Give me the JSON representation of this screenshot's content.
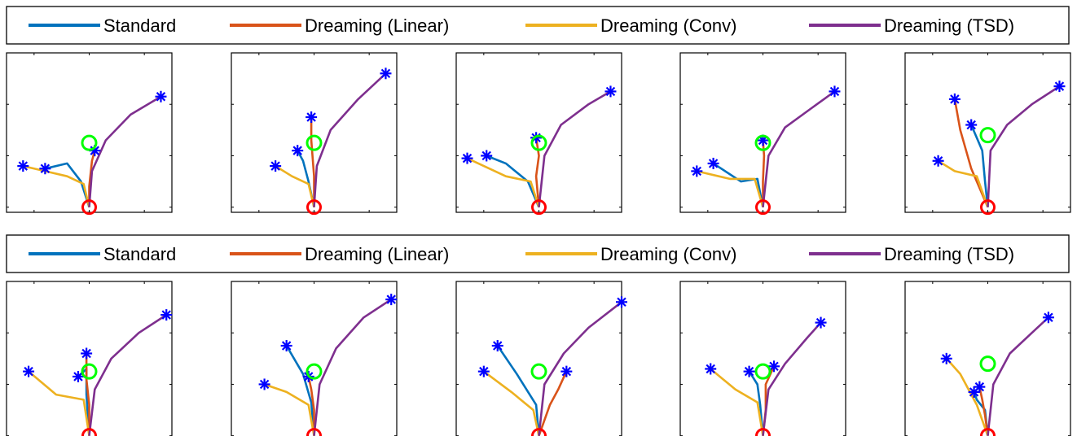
{
  "legend": [
    {
      "label": "Standard",
      "color": "#0072BD"
    },
    {
      "label": "Dreaming (Linear)",
      "color": "#D95319"
    },
    {
      "label": "Dreaming (Conv)",
      "color": "#EDB120"
    },
    {
      "label": "Dreaming (TSD)",
      "color": "#7E2F8E"
    }
  ],
  "markers": {
    "start_color": "#FF0000",
    "goal_color": "#00FF00",
    "endpoint_color": "#0000FF"
  },
  "chart_data": [
    {
      "type": "line",
      "group": "top",
      "panel": 1,
      "xlim": [
        -1.5,
        1.5
      ],
      "ylim": [
        -0.1,
        3
      ],
      "start": [
        0,
        0
      ],
      "goal": [
        0,
        1.25
      ],
      "series": [
        {
          "color": "#0072BD",
          "x": [
            0,
            -0.15,
            -0.4,
            -0.8
          ],
          "y": [
            0,
            0.5,
            0.85,
            0.75
          ]
        },
        {
          "color": "#D95319",
          "x": [
            0,
            0,
            0.05,
            0.1
          ],
          "y": [
            0,
            0.4,
            0.9,
            1.1
          ]
        },
        {
          "color": "#EDB120",
          "x": [
            0,
            -0.1,
            -0.4,
            -0.8,
            -1.2
          ],
          "y": [
            0,
            0.45,
            0.6,
            0.7,
            0.8
          ]
        },
        {
          "color": "#7E2F8E",
          "x": [
            0,
            0.05,
            0.3,
            0.75,
            1.3
          ],
          "y": [
            0,
            0.7,
            1.3,
            1.8,
            2.15
          ]
        }
      ]
    },
    {
      "type": "line",
      "group": "top",
      "panel": 2,
      "xlim": [
        -1.5,
        1.5
      ],
      "ylim": [
        -0.1,
        3
      ],
      "start": [
        0,
        0
      ],
      "goal": [
        0,
        1.25
      ],
      "series": [
        {
          "color": "#0072BD",
          "x": [
            0,
            -0.1,
            -0.2,
            -0.3
          ],
          "y": [
            0,
            0.5,
            0.9,
            1.1
          ]
        },
        {
          "color": "#D95319",
          "x": [
            0,
            0,
            -0.05,
            -0.05
          ],
          "y": [
            0,
            0.6,
            1.3,
            1.75
          ]
        },
        {
          "color": "#EDB120",
          "x": [
            0,
            -0.1,
            -0.4,
            -0.7
          ],
          "y": [
            0,
            0.45,
            0.6,
            0.8
          ]
        },
        {
          "color": "#7E2F8E",
          "x": [
            0,
            0.05,
            0.3,
            0.8,
            1.3
          ],
          "y": [
            0,
            0.8,
            1.5,
            2.1,
            2.6
          ]
        }
      ]
    },
    {
      "type": "line",
      "group": "top",
      "panel": 3,
      "xlim": [
        -1.5,
        1.5
      ],
      "ylim": [
        -0.1,
        3
      ],
      "start": [
        0,
        0
      ],
      "goal": [
        0,
        1.25
      ],
      "series": [
        {
          "color": "#0072BD",
          "x": [
            0,
            -0.2,
            -0.6,
            -0.95
          ],
          "y": [
            0,
            0.5,
            0.85,
            1.0
          ]
        },
        {
          "color": "#D95319",
          "x": [
            0,
            -0.05,
            0,
            -0.05
          ],
          "y": [
            0,
            0.6,
            1.0,
            1.35
          ]
        },
        {
          "color": "#EDB120",
          "x": [
            0,
            -0.15,
            -0.6,
            -1.3
          ],
          "y": [
            0,
            0.5,
            0.6,
            0.95
          ]
        },
        {
          "color": "#7E2F8E",
          "x": [
            0,
            0.1,
            0.4,
            0.9,
            1.3
          ],
          "y": [
            0,
            1.0,
            1.6,
            2.0,
            2.25
          ]
        }
      ]
    },
    {
      "type": "line",
      "group": "top",
      "panel": 4,
      "xlim": [
        -1.5,
        1.5
      ],
      "ylim": [
        -0.1,
        3
      ],
      "start": [
        0,
        0
      ],
      "goal": [
        0,
        1.25
      ],
      "series": [
        {
          "color": "#0072BD",
          "x": [
            0,
            -0.1,
            -0.4,
            -0.9
          ],
          "y": [
            0,
            0.55,
            0.5,
            0.85
          ]
        },
        {
          "color": "#D95319",
          "x": [
            0,
            0,
            0.02,
            0
          ],
          "y": [
            0,
            0.5,
            1.0,
            1.3
          ]
        },
        {
          "color": "#EDB120",
          "x": [
            0,
            -0.15,
            -0.6,
            -1.2
          ],
          "y": [
            0,
            0.55,
            0.55,
            0.7
          ]
        },
        {
          "color": "#7E2F8E",
          "x": [
            0,
            0.1,
            0.4,
            0.85,
            1.3
          ],
          "y": [
            0,
            1.0,
            1.55,
            1.9,
            2.25
          ]
        }
      ]
    },
    {
      "type": "line",
      "group": "top",
      "panel": 5,
      "xlim": [
        -1.5,
        1.5
      ],
      "ylim": [
        -0.1,
        3
      ],
      "start": [
        0,
        0
      ],
      "goal": [
        0,
        1.4
      ],
      "series": [
        {
          "color": "#0072BD",
          "x": [
            0,
            -0.05,
            -0.1,
            -0.3
          ],
          "y": [
            0,
            0.5,
            1.1,
            1.6
          ]
        },
        {
          "color": "#D95319",
          "x": [
            0,
            -0.3,
            -0.5,
            -0.6
          ],
          "y": [
            0,
            0.75,
            1.5,
            2.1
          ]
        },
        {
          "color": "#EDB120",
          "x": [
            0,
            -0.2,
            -0.6,
            -0.9
          ],
          "y": [
            0,
            0.6,
            0.7,
            0.9
          ]
        },
        {
          "color": "#7E2F8E",
          "x": [
            0,
            0.05,
            0.35,
            0.8,
            1.3
          ],
          "y": [
            0,
            1.1,
            1.6,
            2.0,
            2.35
          ]
        }
      ]
    },
    {
      "type": "line",
      "group": "bottom",
      "panel": 1,
      "xlim": [
        -1.5,
        1.5
      ],
      "ylim": [
        -0.1,
        3
      ],
      "start": [
        0,
        0
      ],
      "goal": [
        0,
        1.25
      ],
      "series": [
        {
          "color": "#0072BD",
          "x": [
            0,
            -0.05,
            -0.05,
            -0.2
          ],
          "y": [
            0,
            0.8,
            1.3,
            1.15
          ]
        },
        {
          "color": "#D95319",
          "x": [
            0,
            0,
            -0.05,
            -0.05
          ],
          "y": [
            0,
            0.6,
            1.1,
            1.6
          ]
        },
        {
          "color": "#EDB120",
          "x": [
            0,
            -0.1,
            -0.6,
            -1.1
          ],
          "y": [
            0,
            0.7,
            0.8,
            1.25
          ]
        },
        {
          "color": "#7E2F8E",
          "x": [
            0,
            0.1,
            0.4,
            0.9,
            1.4
          ],
          "y": [
            0,
            0.9,
            1.5,
            2.0,
            2.35
          ]
        }
      ]
    },
    {
      "type": "line",
      "group": "bottom",
      "panel": 2,
      "xlim": [
        -1.5,
        1.5
      ],
      "ylim": [
        -0.1,
        3
      ],
      "start": [
        0,
        0
      ],
      "goal": [
        0,
        1.25
      ],
      "series": [
        {
          "color": "#0072BD",
          "x": [
            0,
            -0.05,
            -0.2,
            -0.5
          ],
          "y": [
            0,
            0.65,
            1.2,
            1.75
          ]
        },
        {
          "color": "#D95319",
          "x": [
            0,
            0,
            -0.05,
            -0.1
          ],
          "y": [
            0,
            0.5,
            0.9,
            1.15
          ]
        },
        {
          "color": "#EDB120",
          "x": [
            0,
            -0.1,
            -0.5,
            -0.9
          ],
          "y": [
            0,
            0.6,
            0.85,
            1.0
          ]
        },
        {
          "color": "#7E2F8E",
          "x": [
            0,
            0.1,
            0.4,
            0.9,
            1.4
          ],
          "y": [
            0,
            1.0,
            1.7,
            2.3,
            2.65
          ]
        }
      ]
    },
    {
      "type": "line",
      "group": "bottom",
      "panel": 3,
      "xlim": [
        -1.5,
        1.5
      ],
      "ylim": [
        -0.1,
        3
      ],
      "start": [
        0,
        0
      ],
      "goal": [
        0,
        1.25
      ],
      "series": [
        {
          "color": "#0072BD",
          "x": [
            0,
            -0.05,
            -0.4,
            -0.75
          ],
          "y": [
            0,
            0.6,
            1.2,
            1.75
          ]
        },
        {
          "color": "#D95319",
          "x": [
            0,
            0.2,
            0.35,
            0.5
          ],
          "y": [
            0,
            0.6,
            0.9,
            1.25
          ]
        },
        {
          "color": "#EDB120",
          "x": [
            0,
            -0.1,
            -0.5,
            -1.0
          ],
          "y": [
            0,
            0.5,
            0.85,
            1.25
          ]
        },
        {
          "color": "#7E2F8E",
          "x": [
            0,
            0.1,
            0.45,
            0.9,
            1.5
          ],
          "y": [
            0,
            1.0,
            1.6,
            2.1,
            2.6
          ]
        }
      ]
    },
    {
      "type": "line",
      "group": "bottom",
      "panel": 4,
      "xlim": [
        -1.5,
        1.5
      ],
      "ylim": [
        -0.1,
        3
      ],
      "start": [
        0,
        0
      ],
      "goal": [
        0,
        1.25
      ],
      "series": [
        {
          "color": "#0072BD",
          "x": [
            0,
            -0.05,
            -0.1,
            -0.25
          ],
          "y": [
            0,
            0.6,
            1.0,
            1.25
          ]
        },
        {
          "color": "#D95319",
          "x": [
            0,
            0.05,
            0.05,
            0.2
          ],
          "y": [
            0,
            0.5,
            1.0,
            1.35
          ]
        },
        {
          "color": "#EDB120",
          "x": [
            0,
            -0.1,
            -0.5,
            -0.95
          ],
          "y": [
            0,
            0.65,
            0.9,
            1.3
          ]
        },
        {
          "color": "#7E2F8E",
          "x": [
            0,
            0.1,
            0.4,
            0.8,
            1.05
          ],
          "y": [
            0,
            0.9,
            1.4,
            1.9,
            2.2
          ]
        }
      ]
    },
    {
      "type": "line",
      "group": "bottom",
      "panel": 5,
      "xlim": [
        -1.5,
        1.5
      ],
      "ylim": [
        -0.1,
        3
      ],
      "start": [
        0,
        0
      ],
      "goal": [
        0,
        1.4
      ],
      "series": [
        {
          "color": "#0072BD",
          "x": [
            0,
            -0.05,
            -0.2,
            -0.25
          ],
          "y": [
            0,
            0.5,
            0.7,
            0.85
          ]
        },
        {
          "color": "#D95319",
          "x": [
            0,
            -0.05,
            -0.1,
            -0.15
          ],
          "y": [
            0,
            0.4,
            0.7,
            0.95
          ]
        },
        {
          "color": "#EDB120",
          "x": [
            0,
            -0.2,
            -0.5,
            -0.75
          ],
          "y": [
            0,
            0.6,
            1.2,
            1.5
          ]
        },
        {
          "color": "#7E2F8E",
          "x": [
            0,
            0.1,
            0.4,
            0.8,
            1.1
          ],
          "y": [
            0,
            1.0,
            1.6,
            2.0,
            2.3
          ]
        }
      ]
    }
  ]
}
